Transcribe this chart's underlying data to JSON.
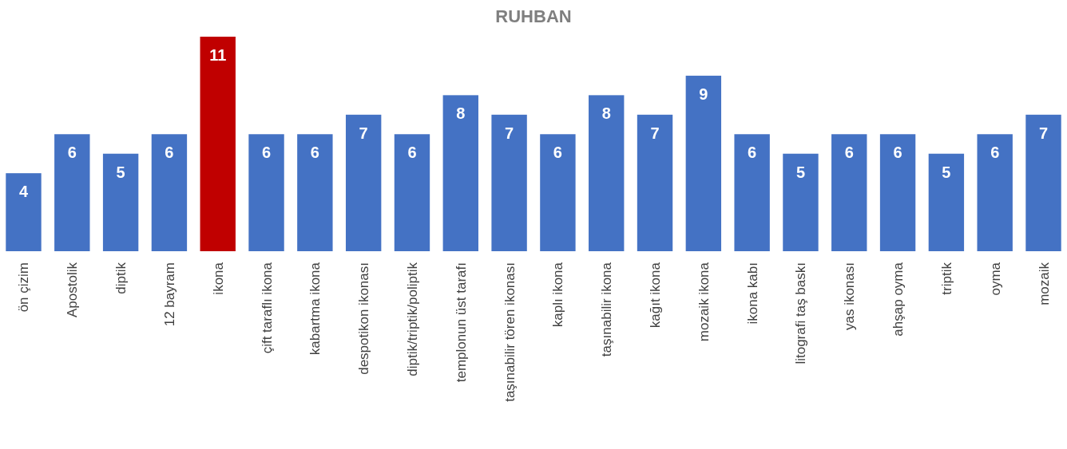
{
  "chart_data": {
    "type": "bar",
    "title": "RUHBAN",
    "categories": [
      "ön çizim",
      "Apostolik",
      "diptik",
      "12 bayram",
      "ikona",
      "çift taraflı ikona",
      "kabartma ikona",
      "despotikon ikonası",
      "diptik/triptik/poliptik",
      "templonun üst tarafı",
      "taşınabilir tören ikonası",
      "kaplı ikona",
      "taşınabilir ikona",
      "kağıt ikona",
      "mozaik ikona",
      "ikona kabı",
      "litografi taş baskı",
      "yas ikonası",
      "ahşap oyma",
      "triptik",
      "oyma",
      "mozaik"
    ],
    "values": [
      4,
      6,
      5,
      6,
      11,
      6,
      6,
      7,
      6,
      8,
      7,
      6,
      8,
      7,
      9,
      6,
      5,
      6,
      6,
      5,
      6,
      7
    ],
    "colors": [
      "#4472c4",
      "#4472c4",
      "#4472c4",
      "#4472c4",
      "#c00000",
      "#4472c4",
      "#4472c4",
      "#4472c4",
      "#4472c4",
      "#4472c4",
      "#4472c4",
      "#4472c4",
      "#4472c4",
      "#4472c4",
      "#4472c4",
      "#4472c4",
      "#4472c4",
      "#4472c4",
      "#4472c4",
      "#4472c4",
      "#4472c4",
      "#4472c4"
    ],
    "data_labels": true
  }
}
